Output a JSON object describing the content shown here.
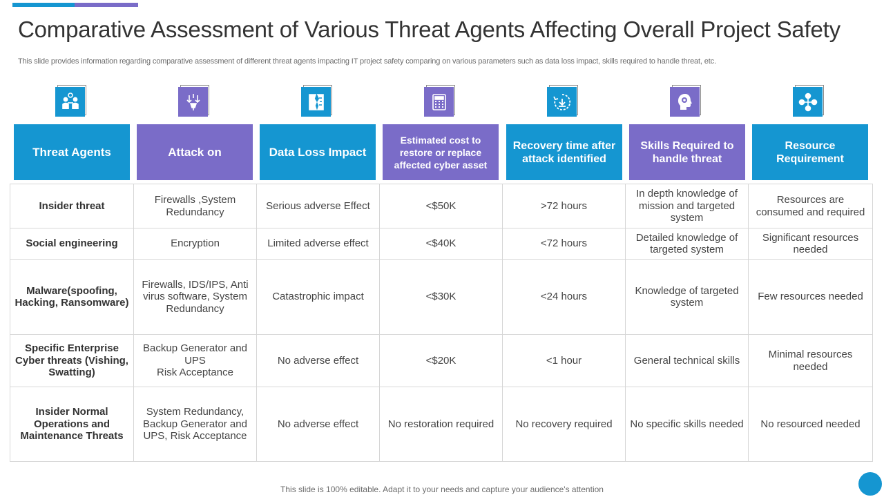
{
  "title": "Comparative Assessment of Various Threat Agents Affecting Overall Project Safety",
  "subtitle": "This slide provides information regarding comparative assessment of different threat agents impacting IT project safety comparing on various parameters such as data loss impact, skills required to handle threat, etc.",
  "colors": {
    "blue": "#1596d1",
    "purple": "#7a6cc8"
  },
  "columns": [
    {
      "label": "Threat Agents",
      "color": "blue",
      "icon": "team-meeting-icon"
    },
    {
      "label": "Attack on",
      "color": "purple",
      "icon": "attack-target-icon"
    },
    {
      "label": "Data Loss Impact",
      "color": "blue",
      "icon": "broken-document-icon"
    },
    {
      "label": "Estimated cost to restore or replace affected cyber asset",
      "color": "purple",
      "icon": "calculator-icon"
    },
    {
      "label": "Recovery time after attack identified",
      "color": "blue",
      "icon": "recovery-cycle-icon"
    },
    {
      "label": "Skills Required to handle threat",
      "color": "purple",
      "icon": "head-gear-icon"
    },
    {
      "label": "Resource Requirement",
      "color": "blue",
      "icon": "resource-network-icon"
    }
  ],
  "rows": [
    [
      "Insider threat",
      "Firewalls ,System Redundancy",
      "Serious adverse Effect",
      "<$50K",
      ">72 hours",
      "In depth knowledge of mission and targeted system",
      "Resources are consumed and required"
    ],
    [
      "Social engineering",
      "Encryption",
      "Limited adverse effect",
      "<$40K",
      "<72 hours",
      "Detailed knowledge of targeted system",
      "Significant resources needed"
    ],
    [
      "Malware(spoofing, Hacking, Ransomware)",
      "Firewalls, IDS/IPS, Anti virus software, System Redundancy",
      "Catastrophic impact",
      "<$30K",
      "<24 hours",
      "Knowledge of targeted system",
      "Few resources needed"
    ],
    [
      "Specific Enterprise Cyber threats (Vishing,  Swatting)",
      "Backup Generator and UPS\nRisk Acceptance",
      "No adverse effect",
      "<$20K",
      "<1 hour",
      "General technical skills",
      "Minimal resources needed"
    ],
    [
      "Insider Normal Operations and Maintenance Threats",
      "System Redundancy, Backup Generator and UPS, Risk Acceptance",
      "No adverse effect",
      "No restoration required",
      "No recovery required",
      "No specific skills needed",
      "No resourced needed"
    ]
  ],
  "footer": "This slide is 100% editable. Adapt it to your needs and capture your audience's attention"
}
